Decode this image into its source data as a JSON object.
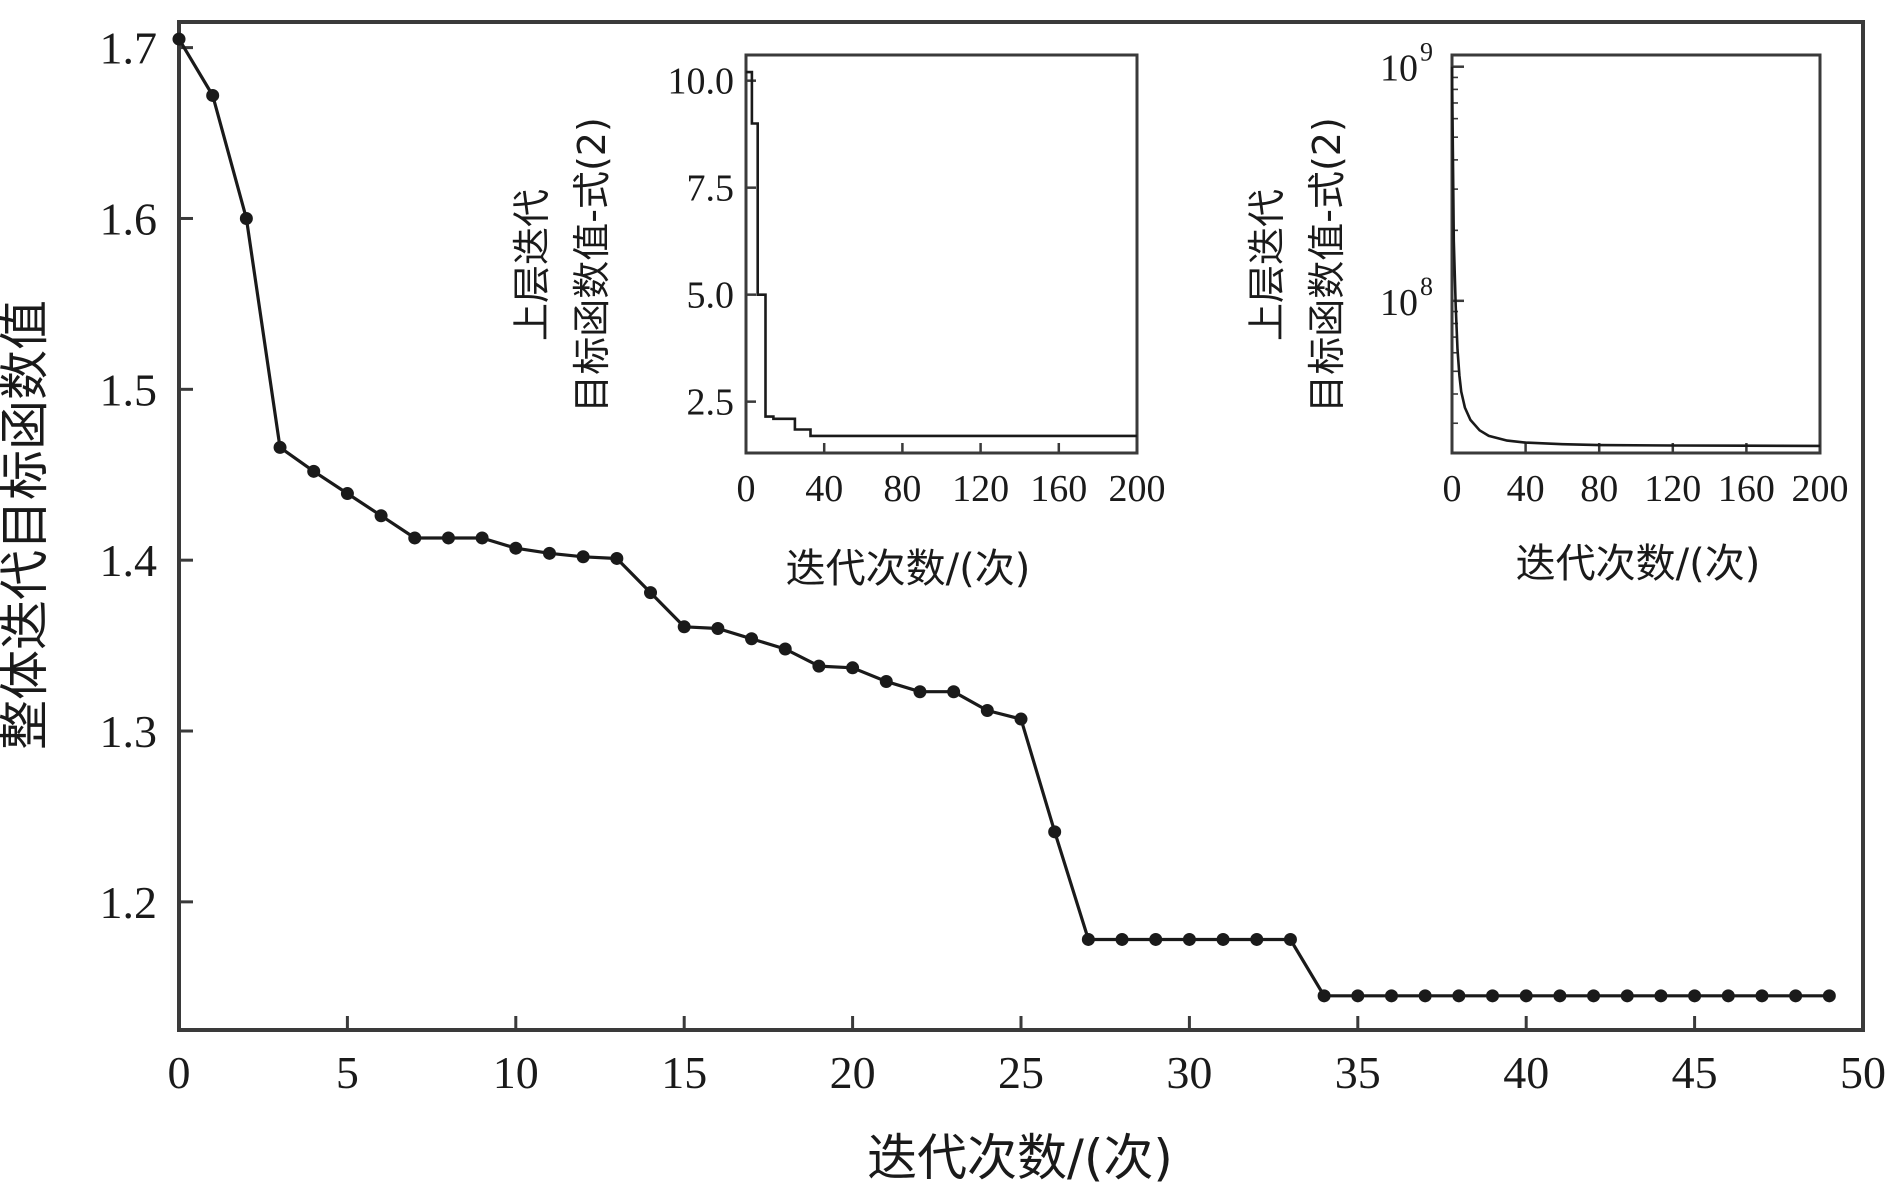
{
  "chart_data": [
    {
      "id": "main",
      "type": "line",
      "xlabel": "迭代次数/(次)",
      "ylabel": "整体迭代目标函数值",
      "xlim": [
        0,
        50
      ],
      "ylim": [
        1.125,
        1.715
      ],
      "xticks": [
        0,
        5,
        10,
        15,
        20,
        25,
        30,
        35,
        40,
        45,
        50
      ],
      "xtick_labels": [
        "0",
        "5",
        "10",
        "15",
        "20",
        "25",
        "30",
        "35",
        "40",
        "45",
        "50"
      ],
      "yticks": [
        1.2,
        1.3,
        1.4,
        1.5,
        1.6,
        1.7
      ],
      "ytick_labels": [
        "1.2",
        "1.3",
        "1.4",
        "1.5",
        "1.6",
        "1.7"
      ],
      "markers": true,
      "color": "#1a1a1a",
      "series": [
        {
          "x": [
            0,
            1,
            2,
            3,
            4,
            5,
            6,
            7,
            8,
            9,
            10,
            11,
            12,
            13,
            14,
            15,
            16,
            17,
            18,
            19,
            20,
            21,
            22,
            23,
            24,
            25,
            26,
            27,
            28,
            29,
            30,
            31,
            32,
            33,
            34,
            35,
            36,
            37,
            38,
            39,
            40,
            41,
            42,
            43,
            44,
            45,
            46,
            47,
            48,
            49
          ],
          "y": [
            1.705,
            1.672,
            1.6,
            1.466,
            1.452,
            1.439,
            1.426,
            1.413,
            1.413,
            1.413,
            1.407,
            1.404,
            1.402,
            1.401,
            1.381,
            1.361,
            1.36,
            1.354,
            1.348,
            1.338,
            1.337,
            1.329,
            1.323,
            1.323,
            1.312,
            1.307,
            1.241,
            1.178,
            1.178,
            1.178,
            1.178,
            1.178,
            1.178,
            1.178,
            1.145,
            1.145,
            1.145,
            1.145,
            1.145,
            1.145,
            1.145,
            1.145,
            1.145,
            1.145,
            1.145,
            1.145,
            1.145,
            1.145,
            1.145,
            1.145
          ]
        }
      ]
    },
    {
      "id": "inset1",
      "type": "line",
      "xlabel": "迭代次数/(次)",
      "ylabel_line1": "上层迭代",
      "ylabel_line2": "目标函数值-式(2)",
      "xlim": [
        0,
        200
      ],
      "ylim": [
        1.3,
        10.6
      ],
      "xticks": [
        0,
        40,
        80,
        120,
        160,
        200
      ],
      "xtick_labels": [
        "0",
        "40",
        "80",
        "120",
        "160",
        "200"
      ],
      "yticks": [
        2.5,
        5.0,
        7.5,
        10.0
      ],
      "ytick_labels": [
        "2.5",
        "5.0",
        "7.5",
        "10.0"
      ],
      "markers": false,
      "color": "#1a1a1a",
      "series": [
        {
          "x": [
            0,
            3,
            3,
            6,
            6,
            10,
            10,
            14,
            14,
            25,
            25,
            33,
            33,
            200
          ],
          "y": [
            10.2,
            10.2,
            9.0,
            9.0,
            5.0,
            5.0,
            2.15,
            2.15,
            2.1,
            2.1,
            1.85,
            1.85,
            1.7,
            1.7
          ]
        }
      ]
    },
    {
      "id": "inset2",
      "type": "line",
      "xlabel": "迭代次数/(次)",
      "ylabel_line1": "上层迭代",
      "ylabel_line2": "目标函数值-式(2)",
      "xlim": [
        0,
        200
      ],
      "ylim_log10": [
        7.35,
        9.05
      ],
      "yscale": "log",
      "ytick_bases": [
        "10",
        "10"
      ],
      "ytick_exponents": [
        "8",
        "9"
      ],
      "ytick_values": [
        100000000,
        1000000000
      ],
      "xticks": [
        0,
        40,
        80,
        120,
        160,
        200
      ],
      "xtick_labels": [
        "0",
        "40",
        "80",
        "120",
        "160",
        "200"
      ],
      "markers": false,
      "color": "#1a1a1a",
      "series": [
        {
          "x": [
            0,
            1,
            2,
            3,
            4,
            5,
            7,
            10,
            15,
            20,
            30,
            40,
            60,
            80,
            120,
            160,
            200
          ],
          "y": [
            1000000000,
            180000000,
            95000000,
            62000000,
            48000000,
            41000000,
            35000000,
            31000000,
            28000000,
            26500000,
            25300000,
            24800000,
            24400000,
            24200000,
            24100000,
            24050000,
            24000000
          ]
        }
      ]
    }
  ]
}
